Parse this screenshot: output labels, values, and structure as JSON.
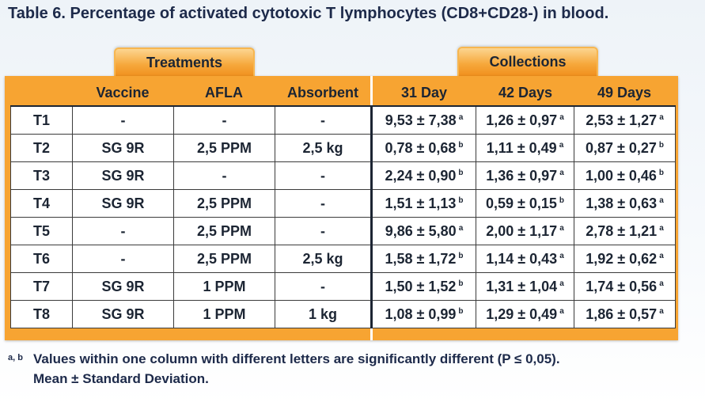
{
  "title": "Table 6. Percentage of activated cytotoxic T lymphocytes (CD8+CD28-) in blood.",
  "group_headers": {
    "treatments": "Treatments",
    "collections": "Collections"
  },
  "columns": {
    "vaccine": "Vaccine",
    "afla": "AFLA",
    "absorbent": "Absorbent",
    "day31": "31 Day",
    "day42": "42 Days",
    "day49": "49 Days"
  },
  "rows": [
    {
      "id": "T1",
      "vaccine": "-",
      "afla": "-",
      "absorbent": "-",
      "d31": {
        "v": "9,53 ± 7,38",
        "s": "a"
      },
      "d42": {
        "v": "1,26 ± 0,97",
        "s": "a"
      },
      "d49": {
        "v": "2,53 ± 1,27",
        "s": "a"
      }
    },
    {
      "id": "T2",
      "vaccine": "SG 9R",
      "afla": "2,5 PPM",
      "absorbent": "2,5 kg",
      "d31": {
        "v": "0,78 ± 0,68",
        "s": "b"
      },
      "d42": {
        "v": "1,11 ± 0,49",
        "s": "a"
      },
      "d49": {
        "v": "0,87 ± 0,27",
        "s": "b"
      }
    },
    {
      "id": "T3",
      "vaccine": "SG 9R",
      "afla": "-",
      "absorbent": "-",
      "d31": {
        "v": "2,24 ± 0,90",
        "s": "b"
      },
      "d42": {
        "v": "1,36 ± 0,97",
        "s": "a"
      },
      "d49": {
        "v": "1,00 ± 0,46",
        "s": "b"
      }
    },
    {
      "id": "T4",
      "vaccine": "SG 9R",
      "afla": "2,5 PPM",
      "absorbent": "-",
      "d31": {
        "v": "1,51 ± 1,13",
        "s": "b"
      },
      "d42": {
        "v": "0,59 ± 0,15",
        "s": "b"
      },
      "d49": {
        "v": "1,38 ± 0,63",
        "s": "a"
      }
    },
    {
      "id": "T5",
      "vaccine": "-",
      "afla": "2,5 PPM",
      "absorbent": "-",
      "d31": {
        "v": "9,86 ± 5,80",
        "s": "a"
      },
      "d42": {
        "v": "2,00 ± 1,17",
        "s": "a"
      },
      "d49": {
        "v": "2,78 ± 1,21",
        "s": "a"
      }
    },
    {
      "id": "T6",
      "vaccine": "-",
      "afla": "2,5 PPM",
      "absorbent": "2,5 kg",
      "d31": {
        "v": "1,58 ± 1,72",
        "s": "b"
      },
      "d42": {
        "v": "1,14 ± 0,43",
        "s": "a"
      },
      "d49": {
        "v": "1,92 ± 0,62",
        "s": "a"
      }
    },
    {
      "id": "T7",
      "vaccine": "SG 9R",
      "afla": "1 PPM",
      "absorbent": "-",
      "d31": {
        "v": "1,50 ± 1,52",
        "s": "b"
      },
      "d42": {
        "v": "1,31 ± 1,04",
        "s": "a"
      },
      "d49": {
        "v": "1,74 ± 0,56",
        "s": "a"
      }
    },
    {
      "id": "T8",
      "vaccine": "SG 9R",
      "afla": "1 PPM",
      "absorbent": "1 kg",
      "d31": {
        "v": "1,08 ± 0,99",
        "s": "b"
      },
      "d42": {
        "v": "1,29 ± 0,49",
        "s": "a"
      },
      "d49": {
        "v": "1,86 ± 0,57",
        "s": "a"
      }
    }
  ],
  "footnote": {
    "letters": "a, b",
    "line1": "Values within one column with different letters are significantly different (P ≤ 0,05).",
    "line2": "Mean ± Standard Deviation."
  },
  "colors": {
    "accent": "#f7a432",
    "text": "#1c2533"
  }
}
